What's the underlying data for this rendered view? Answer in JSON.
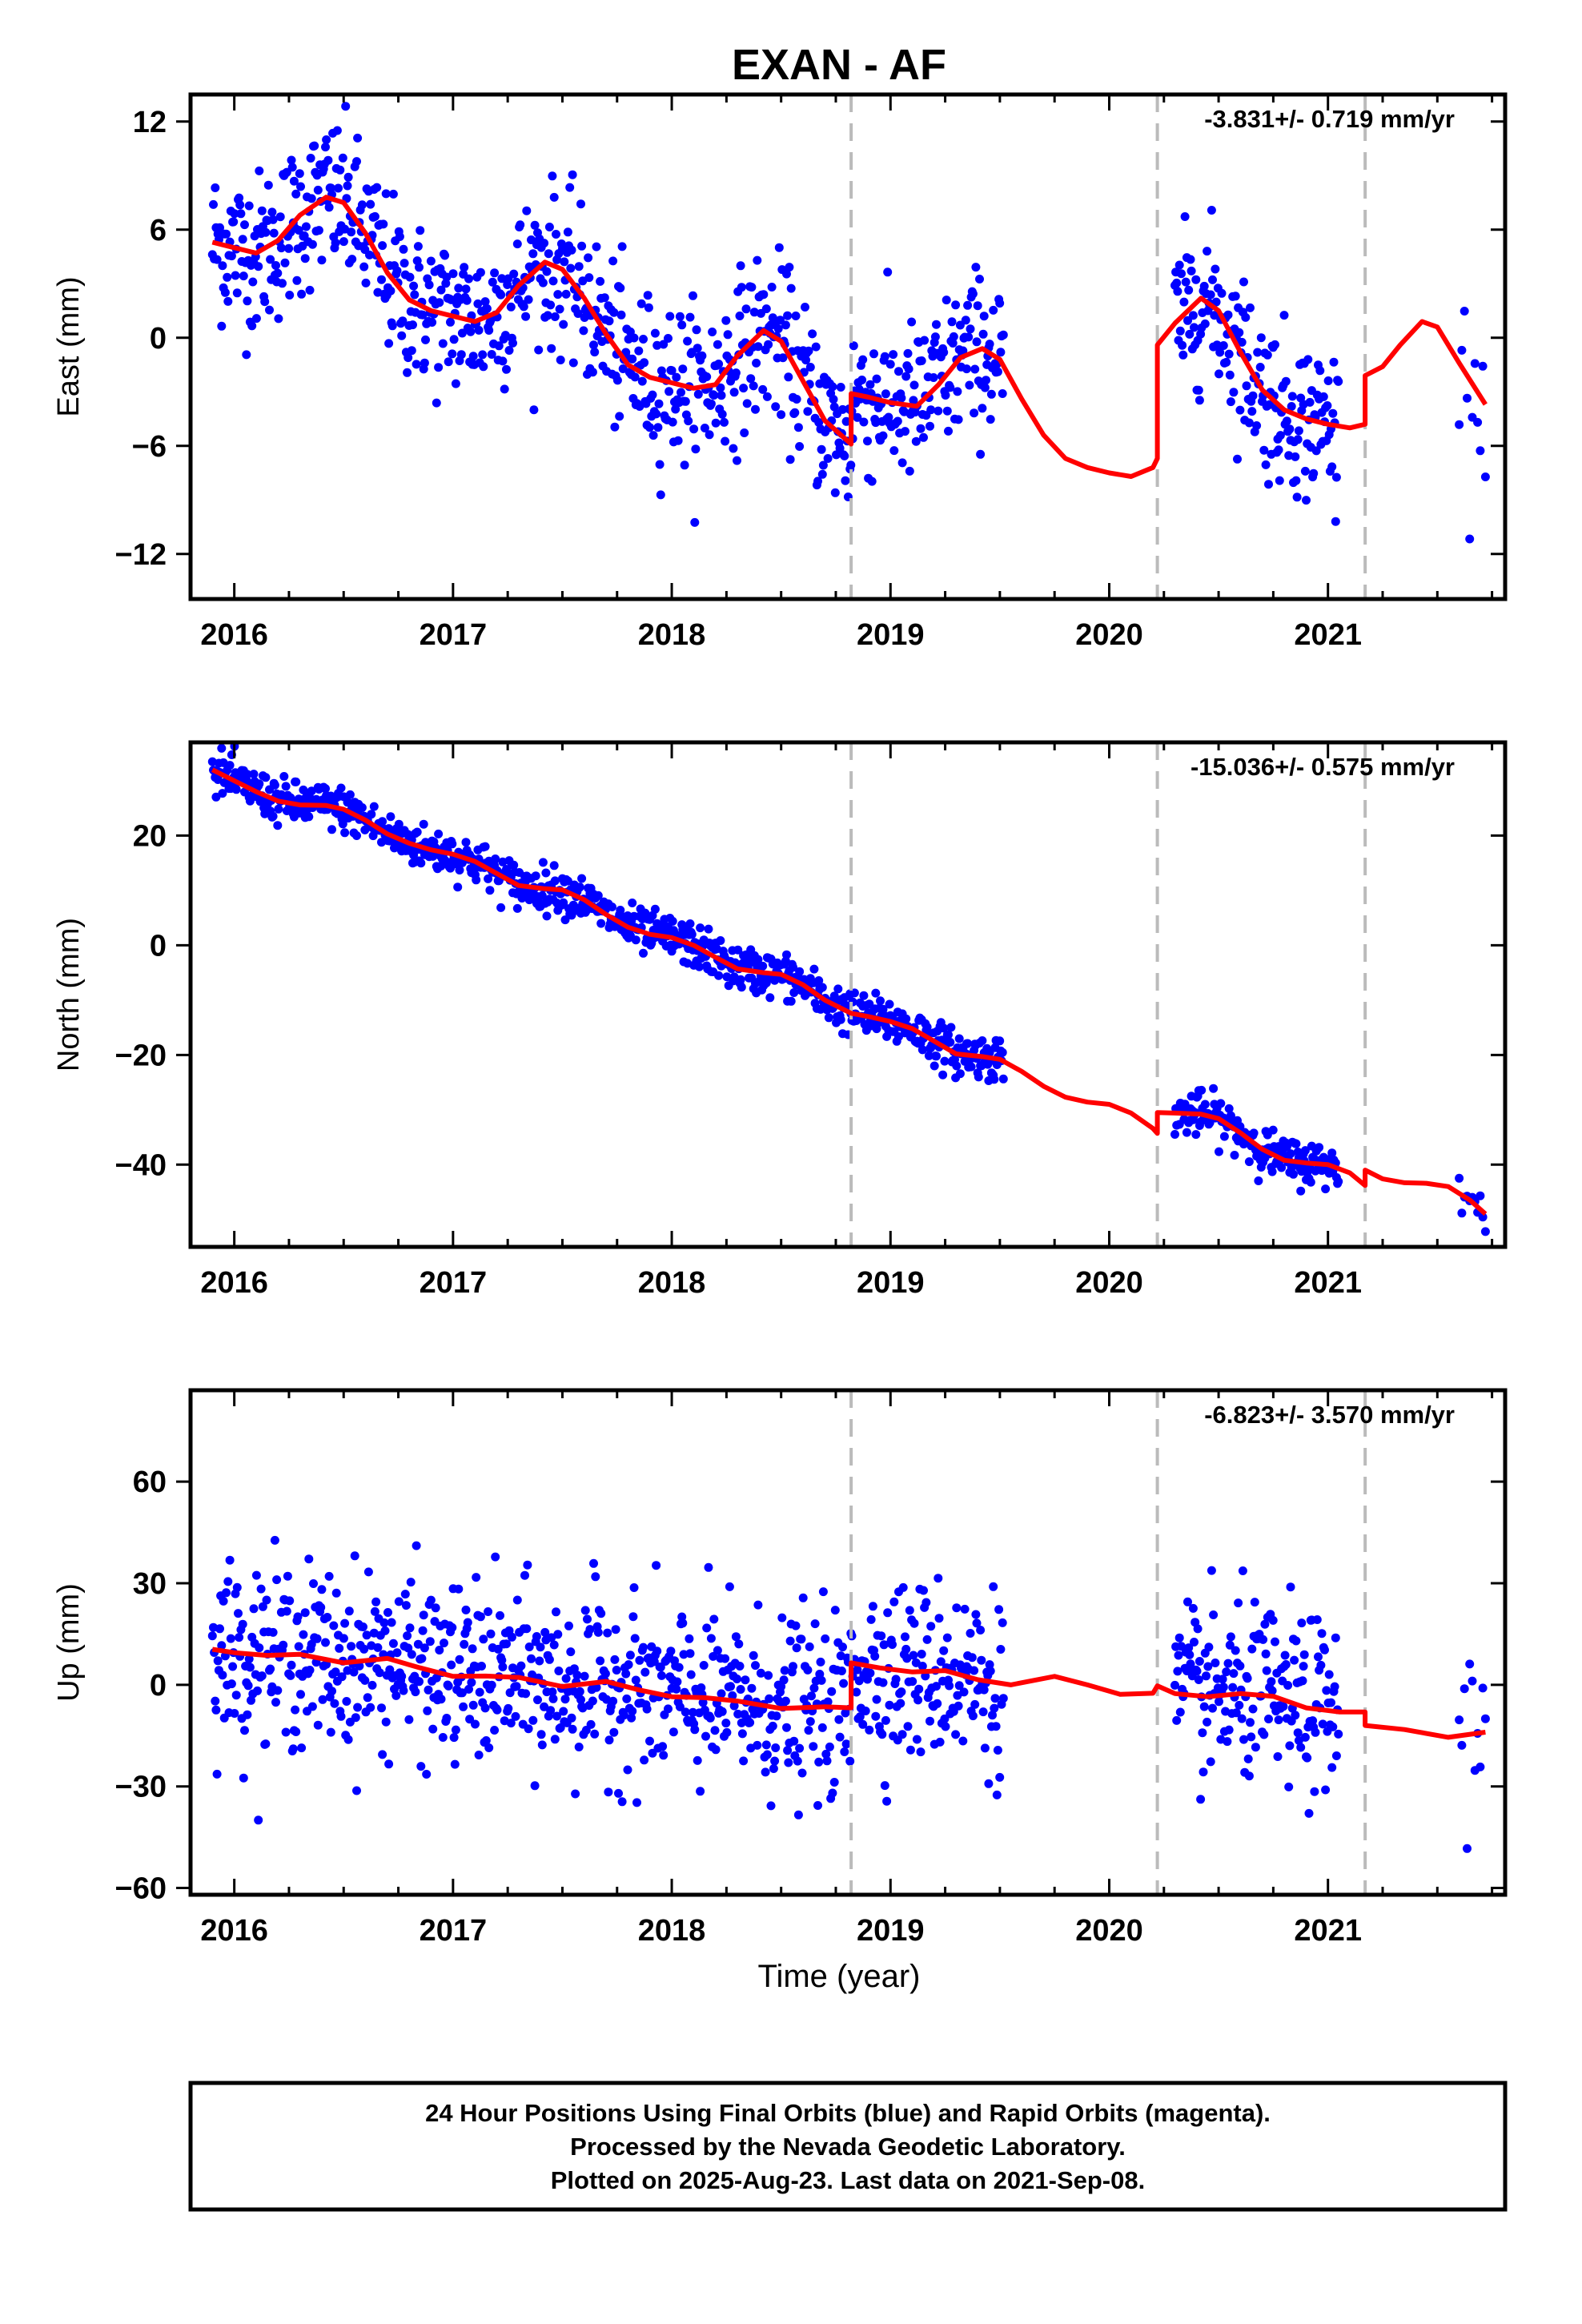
{
  "title": "EXAN - AF",
  "colors": {
    "points": "#0000ff",
    "model": "#ff0000",
    "breaks": "#bbbbbb",
    "frame": "#000000"
  },
  "xlabel": "Time (year)",
  "footer": [
    "24 Hour Positions Using Final Orbits (blue) and Rapid Orbits (magenta).",
    "Processed by the Nevada Geodetic Laboratory.",
    "Plotted on 2025-Aug-23. Last data on 2021-Sep-08."
  ],
  "chart_data": [
    {
      "type": "scatter",
      "component": "east",
      "ylabel": "East (mm)",
      "rate_label": "-3.831+/- 0.719 mm/yr",
      "xlim": [
        2015.8,
        2021.81
      ],
      "ylim": [
        -14.5,
        13.5
      ],
      "x_ticks": [
        "2016",
        "2017",
        "2018",
        "2019",
        "2020",
        "2021"
      ],
      "y_ticks": [
        12,
        6,
        0,
        -6,
        -12
      ],
      "y_tick_labels": [
        "12",
        "6",
        "0",
        "−6",
        "−12"
      ],
      "breaks": [
        2018.82,
        2020.22,
        2021.17
      ],
      "data_segments": [
        [
          2015.9,
          2019.52
        ],
        [
          2020.3,
          2021.05
        ],
        [
          2021.6,
          2021.72
        ]
      ],
      "noise": 2.2,
      "model": [
        [
          2015.9,
          5.3
        ],
        [
          2016.0,
          5.0
        ],
        [
          2016.1,
          4.7
        ],
        [
          2016.2,
          5.4
        ],
        [
          2016.3,
          6.8
        ],
        [
          2016.42,
          7.8
        ],
        [
          2016.5,
          7.5
        ],
        [
          2016.6,
          5.8
        ],
        [
          2016.7,
          3.6
        ],
        [
          2016.8,
          2.1
        ],
        [
          2016.9,
          1.5
        ],
        [
          2017.0,
          1.2
        ],
        [
          2017.1,
          0.9
        ],
        [
          2017.2,
          1.4
        ],
        [
          2017.3,
          2.9
        ],
        [
          2017.42,
          4.2
        ],
        [
          2017.5,
          3.8
        ],
        [
          2017.6,
          2.2
        ],
        [
          2017.7,
          0.2
        ],
        [
          2017.8,
          -1.5
        ],
        [
          2017.9,
          -2.2
        ],
        [
          2018.0,
          -2.5
        ],
        [
          2018.1,
          -2.8
        ],
        [
          2018.2,
          -2.6
        ],
        [
          2018.3,
          -1.0
        ],
        [
          2018.42,
          0.4
        ],
        [
          2018.5,
          -0.2
        ],
        [
          2018.6,
          -2.4
        ],
        [
          2018.7,
          -4.6
        ],
        [
          2018.82,
          -5.9
        ],
        [
          2018.82,
          -3.1
        ],
        [
          2018.9,
          -3.3
        ],
        [
          2019.0,
          -3.6
        ],
        [
          2019.12,
          -3.8
        ],
        [
          2019.22,
          -2.6
        ],
        [
          2019.32,
          -1.1
        ],
        [
          2019.42,
          -0.6
        ],
        [
          2019.5,
          -1.2
        ],
        [
          2019.6,
          -3.4
        ],
        [
          2019.7,
          -5.4
        ],
        [
          2019.8,
          -6.7
        ],
        [
          2019.9,
          -7.2
        ],
        [
          2020.0,
          -7.5
        ],
        [
          2020.1,
          -7.7
        ],
        [
          2020.2,
          -7.2
        ],
        [
          2020.22,
          -6.7
        ],
        [
          2020.22,
          -0.4
        ],
        [
          2020.3,
          0.8
        ],
        [
          2020.42,
          2.2
        ],
        [
          2020.5,
          1.5
        ],
        [
          2020.6,
          -0.8
        ],
        [
          2020.7,
          -2.9
        ],
        [
          2020.8,
          -4.0
        ],
        [
          2020.9,
          -4.5
        ],
        [
          2021.0,
          -4.8
        ],
        [
          2021.1,
          -5.0
        ],
        [
          2021.17,
          -4.8
        ],
        [
          2021.17,
          -2.1
        ],
        [
          2021.25,
          -1.6
        ],
        [
          2021.33,
          -0.4
        ],
        [
          2021.43,
          0.9
        ],
        [
          2021.5,
          0.6
        ],
        [
          2021.6,
          -1.4
        ],
        [
          2021.72,
          -3.7
        ]
      ]
    },
    {
      "type": "scatter",
      "component": "north",
      "ylabel": "North (mm)",
      "rate_label": "-15.036+/- 0.575 mm/yr",
      "xlim": [
        2015.8,
        2021.81
      ],
      "ylim": [
        -55,
        37
      ],
      "x_ticks": [
        "2016",
        "2017",
        "2018",
        "2019",
        "2020",
        "2021"
      ],
      "y_ticks": [
        20,
        0,
        -20,
        -40
      ],
      "y_tick_labels": [
        "20",
        "0",
        "−20",
        "−40"
      ],
      "breaks": [
        2018.82,
        2020.22,
        2021.17
      ],
      "data_segments": [
        [
          2015.9,
          2019.52
        ],
        [
          2020.3,
          2021.05
        ],
        [
          2021.6,
          2021.72
        ]
      ],
      "noise": 2.0,
      "model": [
        [
          2015.9,
          32.0
        ],
        [
          2016.0,
          30.0
        ],
        [
          2016.1,
          28.0
        ],
        [
          2016.2,
          26.3
        ],
        [
          2016.3,
          25.6
        ],
        [
          2016.42,
          25.5
        ],
        [
          2016.5,
          24.8
        ],
        [
          2016.6,
          22.8
        ],
        [
          2016.7,
          20.3
        ],
        [
          2016.8,
          18.6
        ],
        [
          2016.9,
          17.4
        ],
        [
          2017.0,
          16.6
        ],
        [
          2017.1,
          15.3
        ],
        [
          2017.2,
          13.1
        ],
        [
          2017.3,
          10.9
        ],
        [
          2017.42,
          10.3
        ],
        [
          2017.5,
          10.1
        ],
        [
          2017.6,
          8.3
        ],
        [
          2017.7,
          5.6
        ],
        [
          2017.8,
          3.3
        ],
        [
          2017.9,
          2.0
        ],
        [
          2018.0,
          1.4
        ],
        [
          2018.1,
          0.0
        ],
        [
          2018.2,
          -2.2
        ],
        [
          2018.3,
          -4.3
        ],
        [
          2018.42,
          -5.0
        ],
        [
          2018.5,
          -5.3
        ],
        [
          2018.6,
          -7.2
        ],
        [
          2018.7,
          -10.0
        ],
        [
          2018.82,
          -12.4
        ],
        [
          2018.9,
          -13.0
        ],
        [
          2019.0,
          -13.9
        ],
        [
          2019.1,
          -15.2
        ],
        [
          2019.2,
          -17.5
        ],
        [
          2019.3,
          -19.8
        ],
        [
          2019.42,
          -20.3
        ],
        [
          2019.5,
          -20.8
        ],
        [
          2019.6,
          -23.0
        ],
        [
          2019.7,
          -25.7
        ],
        [
          2019.8,
          -27.7
        ],
        [
          2019.9,
          -28.6
        ],
        [
          2020.0,
          -29.0
        ],
        [
          2020.1,
          -30.6
        ],
        [
          2020.2,
          -33.4
        ],
        [
          2020.22,
          -34.3
        ],
        [
          2020.22,
          -30.5
        ],
        [
          2020.3,
          -30.6
        ],
        [
          2020.42,
          -30.8
        ],
        [
          2020.5,
          -31.6
        ],
        [
          2020.6,
          -34.2
        ],
        [
          2020.7,
          -37.2
        ],
        [
          2020.8,
          -39.2
        ],
        [
          2020.9,
          -39.7
        ],
        [
          2021.0,
          -40.0
        ],
        [
          2021.1,
          -41.5
        ],
        [
          2021.17,
          -43.8
        ],
        [
          2021.17,
          -41.0
        ],
        [
          2021.25,
          -42.6
        ],
        [
          2021.35,
          -43.3
        ],
        [
          2021.45,
          -43.4
        ],
        [
          2021.55,
          -44.0
        ],
        [
          2021.65,
          -46.5
        ],
        [
          2021.72,
          -49.0
        ]
      ]
    },
    {
      "type": "scatter",
      "component": "up",
      "ylabel": "Up (mm)",
      "rate_label": "-6.823+/- 3.570 mm/yr",
      "xlim": [
        2015.8,
        2021.81
      ],
      "ylim": [
        -62,
        87
      ],
      "x_ticks": [
        "2016",
        "2017",
        "2018",
        "2019",
        "2020",
        "2021"
      ],
      "y_ticks": [
        60,
        30,
        0,
        -30,
        -60
      ],
      "y_tick_labels": [
        "60",
        "30",
        "0",
        "−30",
        "−60"
      ],
      "breaks": [
        2018.82,
        2020.22,
        2021.17
      ],
      "data_segments": [
        [
          2015.9,
          2019.52
        ],
        [
          2020.3,
          2021.05
        ],
        [
          2021.6,
          2021.72
        ]
      ],
      "noise": 13,
      "model": [
        [
          2015.9,
          10.5
        ],
        [
          2016.0,
          9.5
        ],
        [
          2016.15,
          8.7
        ],
        [
          2016.3,
          9.0
        ],
        [
          2016.5,
          6.5
        ],
        [
          2016.7,
          7.8
        ],
        [
          2016.85,
          5.0
        ],
        [
          2017.0,
          2.5
        ],
        [
          2017.15,
          2.6
        ],
        [
          2017.3,
          2.2
        ],
        [
          2017.5,
          -0.5
        ],
        [
          2017.7,
          1.0
        ],
        [
          2017.85,
          -1.5
        ],
        [
          2018.0,
          -3.5
        ],
        [
          2018.15,
          -3.8
        ],
        [
          2018.3,
          -4.8
        ],
        [
          2018.5,
          -7.0
        ],
        [
          2018.7,
          -6.5
        ],
        [
          2018.82,
          -6.8
        ],
        [
          2018.82,
          6.5
        ],
        [
          2018.95,
          5.0
        ],
        [
          2019.1,
          3.8
        ],
        [
          2019.25,
          4.2
        ],
        [
          2019.4,
          1.5
        ],
        [
          2019.55,
          0.0
        ],
        [
          2019.75,
          2.5
        ],
        [
          2019.9,
          0.0
        ],
        [
          2020.05,
          -2.8
        ],
        [
          2020.2,
          -2.5
        ],
        [
          2020.22,
          -0.3
        ],
        [
          2020.3,
          -2.6
        ],
        [
          2020.45,
          -3.5
        ],
        [
          2020.6,
          -2.6
        ],
        [
          2020.75,
          -3.4
        ],
        [
          2020.9,
          -6.8
        ],
        [
          2021.05,
          -8.0
        ],
        [
          2021.17,
          -8.0
        ],
        [
          2021.17,
          -12.0
        ],
        [
          2021.35,
          -13.2
        ],
        [
          2021.55,
          -15.5
        ],
        [
          2021.72,
          -14.0
        ]
      ]
    }
  ]
}
